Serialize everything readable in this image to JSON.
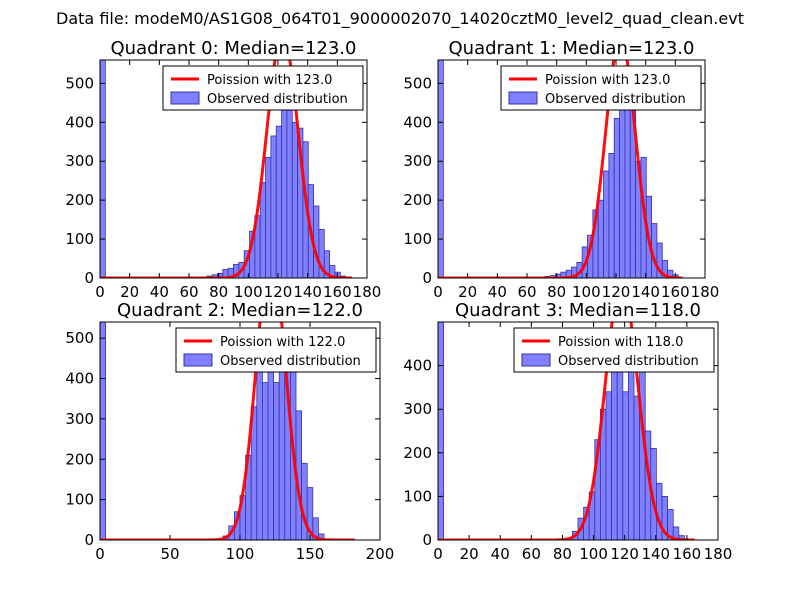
{
  "suptitle": "Data file: modeM0/AS1G08_064T01_9000002070_14020cztM0_level2_quad_clean.evt",
  "colors": {
    "bar_fill": "#8080ff",
    "bar_edge": "#3333aa",
    "curve": "#ff0000",
    "frame": "#000000"
  },
  "chart_data": [
    {
      "type": "bar",
      "title": "Quadrant 0: Median=123.0",
      "xlim": [
        0,
        180
      ],
      "ylim": [
        0,
        560
      ],
      "xticks": [
        0,
        20,
        40,
        60,
        80,
        100,
        120,
        140,
        160,
        180
      ],
      "yticks": [
        0,
        100,
        200,
        300,
        400,
        500
      ],
      "bin_width": 3.6,
      "spike_at_zero": 560,
      "bins": [
        [
          72,
          5
        ],
        [
          75.6,
          8
        ],
        [
          79.2,
          12
        ],
        [
          82.8,
          22
        ],
        [
          86.4,
          25
        ],
        [
          90,
          35
        ],
        [
          93.6,
          40
        ],
        [
          97.2,
          70
        ],
        [
          100.8,
          120
        ],
        [
          104.4,
          160
        ],
        [
          108,
          245
        ],
        [
          111.6,
          310
        ],
        [
          115.2,
          365
        ],
        [
          118.8,
          390
        ],
        [
          122.4,
          530
        ],
        [
          126,
          440
        ],
        [
          129.6,
          400
        ],
        [
          133.2,
          385
        ],
        [
          136.8,
          350
        ],
        [
          140.4,
          240
        ],
        [
          144,
          185
        ],
        [
          147.6,
          125
        ],
        [
          151.2,
          70
        ],
        [
          154.8,
          32
        ],
        [
          158.4,
          15
        ],
        [
          162,
          5
        ]
      ],
      "curve_mean": 123.0,
      "curve_sigma": 10.5,
      "curve_range": [
        0,
        170
      ],
      "legend": [
        "Poission with 123.0",
        "Observed distribution"
      ]
    },
    {
      "type": "bar",
      "title": "Quadrant 1: Median=123.0",
      "xlim": [
        0,
        180
      ],
      "ylim": [
        0,
        560
      ],
      "xticks": [
        0,
        20,
        40,
        60,
        80,
        100,
        120,
        140,
        160,
        180
      ],
      "yticks": [
        0,
        100,
        200,
        300,
        400,
        500
      ],
      "bin_width": 3.6,
      "spike_at_zero": 560,
      "bins": [
        [
          72,
          4
        ],
        [
          75.6,
          6
        ],
        [
          79.2,
          10
        ],
        [
          82.8,
          15
        ],
        [
          86.4,
          20
        ],
        [
          90,
          28
        ],
        [
          93.6,
          40
        ],
        [
          97.2,
          80
        ],
        [
          100.8,
          110
        ],
        [
          104.4,
          175
        ],
        [
          108,
          200
        ],
        [
          111.6,
          275
        ],
        [
          115.2,
          320
        ],
        [
          118.8,
          410
        ],
        [
          122.4,
          540
        ],
        [
          126,
          440
        ],
        [
          129.6,
          510
        ],
        [
          133.2,
          300
        ],
        [
          136.8,
          310
        ],
        [
          140.4,
          210
        ],
        [
          144,
          140
        ],
        [
          147.6,
          90
        ],
        [
          151.2,
          45
        ],
        [
          154.8,
          20
        ],
        [
          158.4,
          8
        ]
      ],
      "curve_mean": 123.0,
      "curve_sigma": 10.0,
      "curve_range": [
        0,
        165
      ],
      "legend": [
        "Poission with 123.0",
        "Observed distribution"
      ]
    },
    {
      "type": "bar",
      "title": "Quadrant 2: Median=122.0",
      "xlim": [
        0,
        200
      ],
      "ylim": [
        0,
        540
      ],
      "xticks": [
        0,
        50,
        100,
        150,
        200
      ],
      "yticks": [
        0,
        100,
        200,
        300,
        400,
        500
      ],
      "bin_width": 4,
      "spike_at_zero": 540,
      "bins": [
        [
          88,
          10
        ],
        [
          92,
          35
        ],
        [
          96,
          70
        ],
        [
          100,
          110
        ],
        [
          104,
          210
        ],
        [
          108,
          330
        ],
        [
          112,
          470
        ],
        [
          116,
          390
        ],
        [
          120,
          520
        ],
        [
          124,
          390
        ],
        [
          128,
          460
        ],
        [
          132,
          520
        ],
        [
          136,
          440
        ],
        [
          140,
          320
        ],
        [
          144,
          190
        ],
        [
          148,
          130
        ],
        [
          152,
          55
        ],
        [
          156,
          15
        ]
      ],
      "curve_mean": 122.0,
      "curve_sigma": 10.5,
      "curve_range": [
        0,
        182
      ],
      "legend": [
        "Poission with 122.0",
        "Observed distribution"
      ]
    },
    {
      "type": "bar",
      "title": "Quadrant 3: Median=118.0",
      "xlim": [
        0,
        180
      ],
      "ylim": [
        0,
        500
      ],
      "xticks": [
        0,
        20,
        40,
        60,
        80,
        100,
        120,
        140,
        160,
        180
      ],
      "yticks": [
        0,
        100,
        200,
        300,
        400
      ],
      "bin_width": 3.6,
      "spike_at_zero": 500,
      "bins": [
        [
          86.4,
          20
        ],
        [
          90,
          50
        ],
        [
          93.6,
          75
        ],
        [
          97.2,
          110
        ],
        [
          100.8,
          230
        ],
        [
          104.4,
          300
        ],
        [
          108,
          340
        ],
        [
          111.6,
          410
        ],
        [
          115.2,
          450
        ],
        [
          118.8,
          340
        ],
        [
          122.4,
          400
        ],
        [
          126,
          330
        ],
        [
          129.6,
          460
        ],
        [
          133.2,
          250
        ],
        [
          136.8,
          210
        ],
        [
          140.4,
          130
        ],
        [
          144,
          100
        ],
        [
          147.6,
          70
        ],
        [
          151.2,
          30
        ],
        [
          154.8,
          10
        ]
      ],
      "curve_mean": 118.0,
      "curve_sigma": 10.5,
      "curve_range": [
        0,
        165
      ],
      "legend": [
        "Poission with 118.0",
        "Observed distribution"
      ]
    }
  ]
}
